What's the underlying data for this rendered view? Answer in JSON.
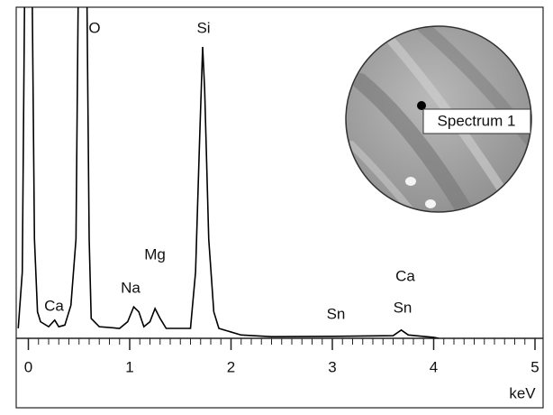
{
  "chart_data": {
    "type": "line",
    "color": "#000000",
    "x": [
      -0.1,
      -0.06,
      -0.03,
      0.03,
      0.06,
      0.09,
      0.12,
      0.2,
      0.26,
      0.3,
      0.36,
      0.42,
      0.47,
      0.5,
      0.57,
      0.6,
      0.62,
      0.7,
      0.9,
      0.98,
      1.04,
      1.09,
      1.14,
      1.2,
      1.25,
      1.3,
      1.36,
      1.6,
      1.65,
      1.69,
      1.72,
      1.74,
      1.78,
      1.83,
      1.88,
      2.1,
      2.4,
      3.0,
      3.6,
      3.68,
      3.75,
      4.0,
      4.05
    ],
    "values": [
      3,
      20,
      130,
      130,
      30,
      8,
      5,
      3.5,
      5.5,
      3.5,
      4,
      10,
      30,
      130,
      130,
      30,
      6,
      3.5,
      3,
      5,
      9.5,
      8,
      3.5,
      5,
      9,
      6,
      3,
      3,
      20,
      60,
      88,
      75,
      30,
      8,
      3,
      1,
      0.5,
      0.6,
      0.8,
      2.5,
      1,
      0.3,
      0
    ],
    "xlim": [
      -0.12,
      5.08
    ],
    "ylim": [
      0,
      100
    ],
    "xticks": [
      0,
      1,
      2,
      3,
      4,
      5
    ],
    "xminorticks": [
      0.1,
      0.2,
      0.3,
      0.4,
      0.5,
      0.6,
      0.7,
      0.8,
      0.9,
      1.1,
      1.2,
      1.3,
      1.4,
      1.5,
      1.6,
      1.7,
      1.8,
      1.9,
      2.1,
      2.2,
      2.3,
      2.4,
      2.5,
      2.6,
      2.7,
      2.8,
      2.9,
      3.1,
      3.2,
      3.3,
      3.4,
      3.5,
      3.6,
      3.7,
      3.8,
      3.9,
      4.1,
      4.2,
      4.3,
      4.4,
      4.5,
      4.6,
      4.7,
      4.8,
      4.9,
      5.0
    ],
    "xlabel": "keV",
    "annotations": [
      "Ca",
      "O",
      "Na",
      "Mg",
      "Si",
      "Sn",
      "Ca",
      "Sn"
    ],
    "inset_label": "Spectrum 1"
  }
}
